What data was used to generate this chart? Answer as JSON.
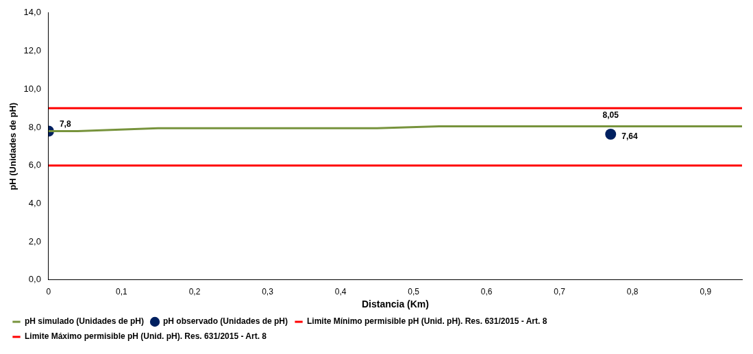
{
  "chart_data": {
    "type": "line",
    "xlabel": "Distancia (Km)",
    "ylabel": "pH (Unidades de pH)",
    "xlim": [
      0,
      0.95
    ],
    "xticks": [
      {
        "value": 0,
        "label": "0"
      },
      {
        "value": 0.1,
        "label": "0,1"
      },
      {
        "value": 0.2,
        "label": "0,2"
      },
      {
        "value": 0.3,
        "label": "0,3"
      },
      {
        "value": 0.4,
        "label": "0,4"
      },
      {
        "value": 0.5,
        "label": "0,5"
      },
      {
        "value": 0.6,
        "label": "0,6"
      },
      {
        "value": 0.7,
        "label": "0,7"
      },
      {
        "value": 0.8,
        "label": "0,8"
      },
      {
        "value": 0.9,
        "label": "0,9"
      }
    ],
    "ylim": [
      0,
      14
    ],
    "yticks": [
      {
        "value": 0,
        "label": "0,0"
      },
      {
        "value": 2,
        "label": "2,0"
      },
      {
        "value": 4,
        "label": "4,0"
      },
      {
        "value": 6,
        "label": "6,0"
      },
      {
        "value": 8,
        "label": "8,0"
      },
      {
        "value": 10,
        "label": "10,0"
      },
      {
        "value": 12,
        "label": "12,0"
      },
      {
        "value": 14,
        "label": "14,0"
      }
    ],
    "grid": false,
    "legend": "bottom",
    "series": [
      {
        "name": "pH simulado (Unidades de pH)",
        "type": "line",
        "color": "#77933c",
        "marker": "none",
        "x": [
          0,
          0.04,
          0.15,
          0.45,
          0.535,
          0.77,
          0.95
        ],
        "values": [
          7.8,
          7.8,
          7.95,
          7.95,
          8.05,
          8.05,
          8.05
        ],
        "value_labels": [
          null,
          null,
          null,
          null,
          null,
          "8,05",
          null
        ]
      },
      {
        "name": "pH observado (Unidades de pH)",
        "type": "scatter",
        "color": "#002060",
        "marker": "circle",
        "x": [
          0,
          0.77
        ],
        "values": [
          7.8,
          7.64
        ],
        "value_labels": [
          "7,8",
          "7,64"
        ]
      },
      {
        "name": "Limite Mínimo permisible pH (Unid. pH). Res. 631/2015 - Art. 8",
        "type": "line",
        "color": "#ff0000",
        "marker": "none",
        "x": [
          0,
          0.95
        ],
        "values": [
          6,
          6
        ]
      },
      {
        "name": "Limite Máximo permisible pH (Unid. pH). Res. 631/2015 - Art. 8",
        "type": "line",
        "color": "#ff0000",
        "marker": "none",
        "x": [
          0,
          0.95
        ],
        "values": [
          9,
          9
        ]
      }
    ]
  }
}
